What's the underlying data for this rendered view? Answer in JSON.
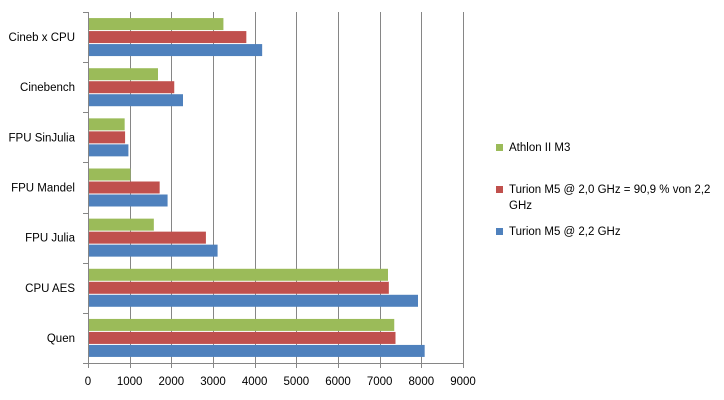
{
  "chart_data": {
    "type": "bar",
    "orientation": "horizontal",
    "title": "",
    "xlabel": "",
    "ylabel": "",
    "xlim": [
      0,
      9000
    ],
    "xticks": [
      0,
      1000,
      2000,
      3000,
      4000,
      5000,
      6000,
      7000,
      8000,
      9000
    ],
    "grid": "vertical",
    "legend_position": "right",
    "categories": [
      "Cineb x CPU",
      "Cinebench",
      "FPU SinJulia",
      "FPU Mandel",
      "FPU Julia",
      "CPU AES",
      "Quen"
    ],
    "series": [
      {
        "name": "Athlon II M3",
        "color": "#9bbb59",
        "values": [
          3250,
          1680,
          880,
          1020,
          1580,
          7200,
          7350
        ]
      },
      {
        "name": "Turion M5 @ 2,0 GHz = 90,9 % von 2,2 GHz",
        "color": "#c0504d",
        "values": [
          3800,
          2070,
          890,
          1720,
          2830,
          7220,
          7380
        ]
      },
      {
        "name": "Turion M5 @ 2,2 GHz",
        "color": "#4f81bd",
        "values": [
          4180,
          2280,
          970,
          1910,
          3110,
          7920,
          8080
        ]
      }
    ]
  }
}
